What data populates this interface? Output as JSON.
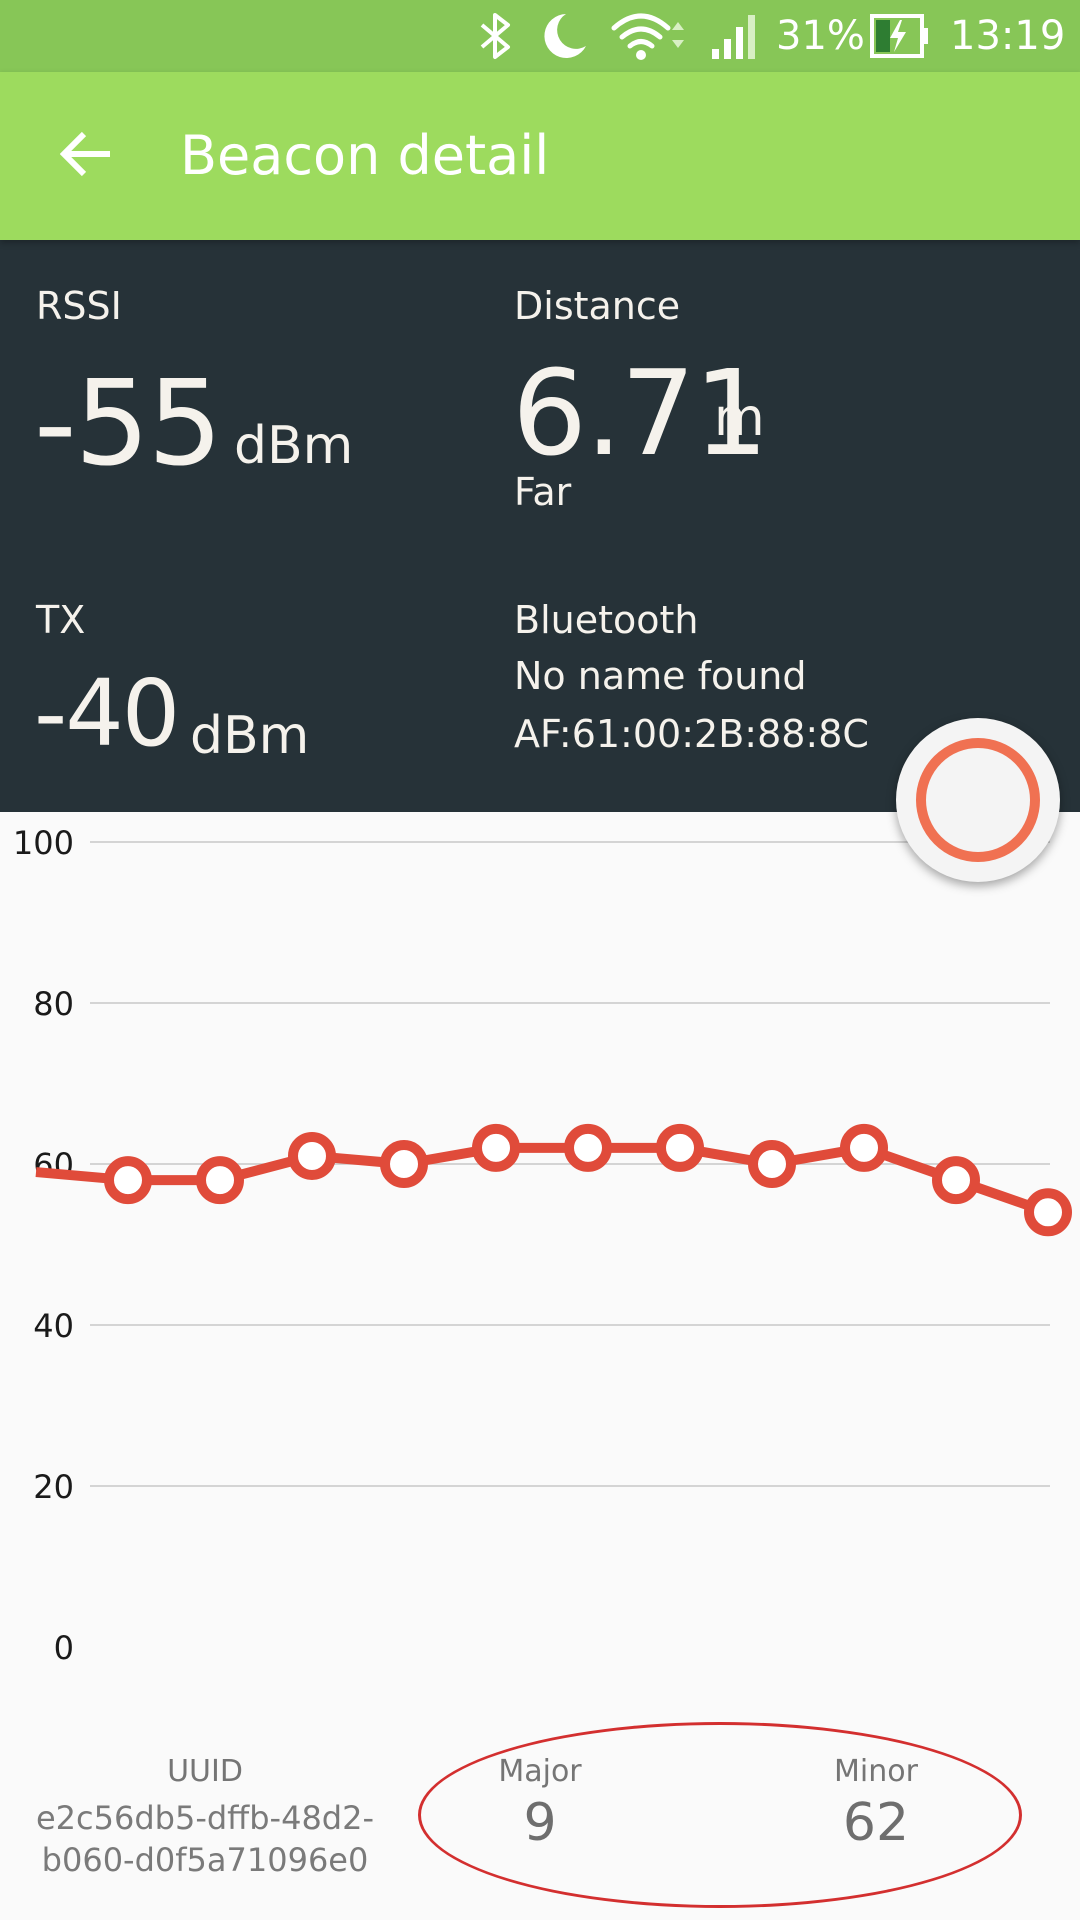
{
  "status_bar": {
    "battery": "31%",
    "time": "13:19",
    "icons": [
      "bluetooth-icon",
      "moon-icon",
      "wifi-icon",
      "signal-icon",
      "battery-charging-icon"
    ]
  },
  "app_bar": {
    "title": "Beacon detail",
    "background": "#9ddb5e"
  },
  "stats": {
    "rssi": {
      "label": "RSSI",
      "value": "-55",
      "unit": "dBm"
    },
    "distance": {
      "label": "Distance",
      "value": "6.71",
      "unit": "m",
      "proximity": "Far"
    },
    "tx": {
      "label": "TX",
      "value": "-40",
      "unit": "dBm"
    },
    "bluetooth": {
      "label": "Bluetooth",
      "name": "No name found",
      "address": "AF:61:00:2B:88:8C"
    }
  },
  "chart_data": {
    "type": "line",
    "ylim": [
      0,
      100
    ],
    "yticks": [
      "100",
      "80",
      "60",
      "40",
      "20",
      "0"
    ],
    "grid": true,
    "series": [
      {
        "color": "#e04b3a",
        "values": [
          59,
          58,
          58,
          61,
          60,
          62,
          62,
          62,
          60,
          62,
          58,
          54
        ]
      }
    ]
  },
  "beacon_info": {
    "uuid_label": "UUID",
    "uuid_line1": "e2c56db5-dffb-48d2-",
    "uuid_line2": "b060-d0f5a71096e0",
    "major_label": "Major",
    "major_value": "9",
    "minor_label": "Minor",
    "minor_value": "62"
  }
}
